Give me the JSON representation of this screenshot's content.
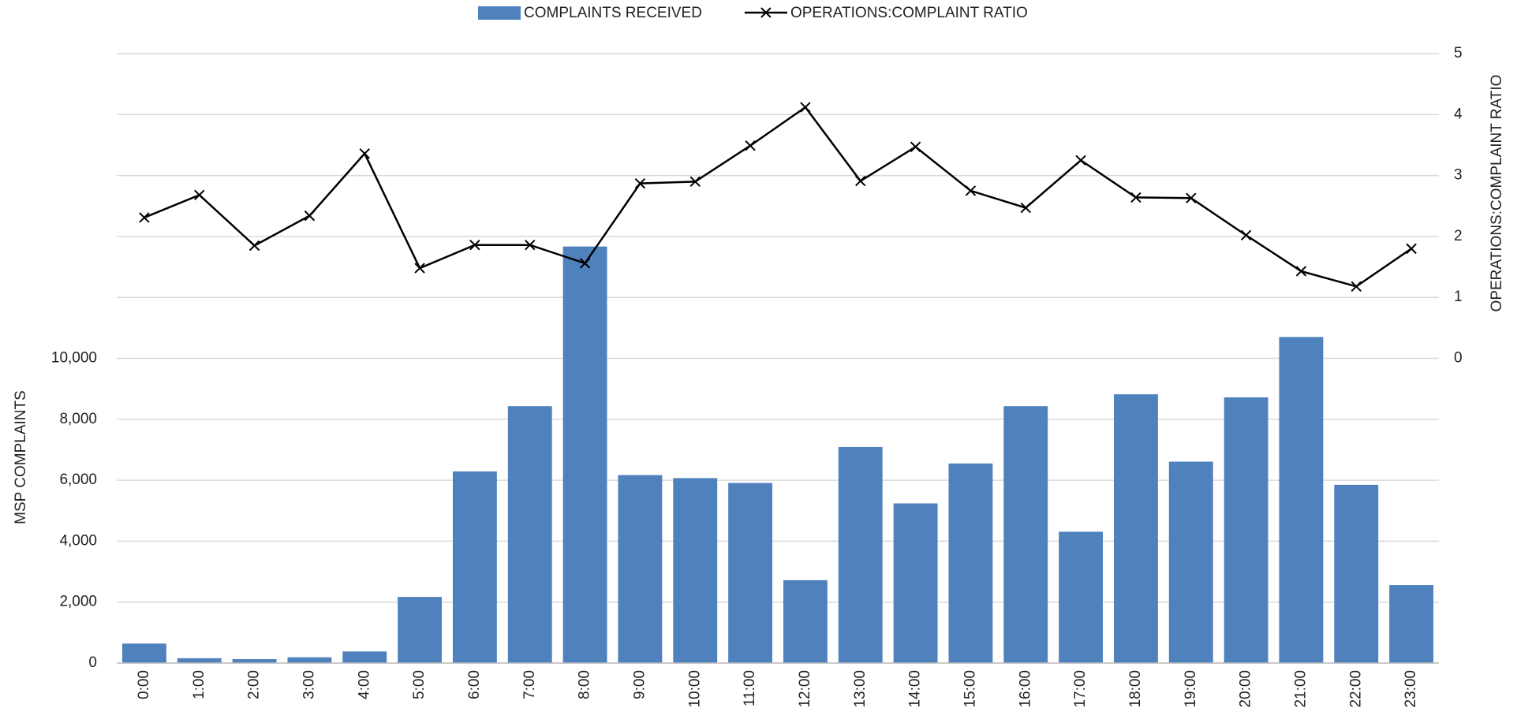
{
  "chart_data": {
    "type": "bar_line",
    "categories": [
      "0:00",
      "1:00",
      "2:00",
      "3:00",
      "4:00",
      "5:00",
      "6:00",
      "7:00",
      "8:00",
      "9:00",
      "10:00",
      "11:00",
      "12:00",
      "13:00",
      "14:00",
      "15:00",
      "16:00",
      "17:00",
      "18:00",
      "19:00",
      "20:00",
      "21:00",
      "22:00",
      "23:00"
    ],
    "series": [
      {
        "name": "COMPLAINTS RECEIVED",
        "type": "bar",
        "color": "#4f81bd",
        "values": [
          640,
          160,
          130,
          190,
          380,
          2170,
          6290,
          8430,
          13670,
          6170,
          6070,
          5910,
          2720,
          7090,
          5240,
          6550,
          8430,
          4310,
          8820,
          6610,
          8720,
          10700,
          5850,
          2560
        ]
      },
      {
        "name": "OPERATIONS:COMPLAINT RATIO",
        "type": "line",
        "axis": "y2",
        "color": "#000000",
        "marker": "x",
        "values": [
          2.31,
          2.68,
          1.85,
          2.34,
          3.36,
          1.48,
          1.86,
          1.86,
          1.56,
          2.87,
          2.9,
          3.49,
          4.12,
          2.91,
          3.47,
          2.75,
          2.47,
          3.25,
          2.64,
          2.63,
          2.02,
          1.43,
          1.18,
          1.8
        ]
      }
    ],
    "ylabel": "MSP COMPLAINTS",
    "y2label": "OPERATIONS:COMPLAINT RATIO",
    "ylim": [
      0,
      20000
    ],
    "yticks": [
      0,
      {
        "value": 2000,
        "label": "2,000"
      },
      {
        "value": 4000,
        "label": "4,000"
      },
      {
        "value": 6000,
        "label": "6,000"
      },
      {
        "value": 8000,
        "label": "8,000"
      },
      {
        "value": 10000,
        "label": "10,000"
      }
    ],
    "y2lim": [
      -5,
      5
    ],
    "y2ticks": [
      0,
      1,
      2,
      3,
      4,
      5
    ],
    "grid": true,
    "legend": "top"
  }
}
